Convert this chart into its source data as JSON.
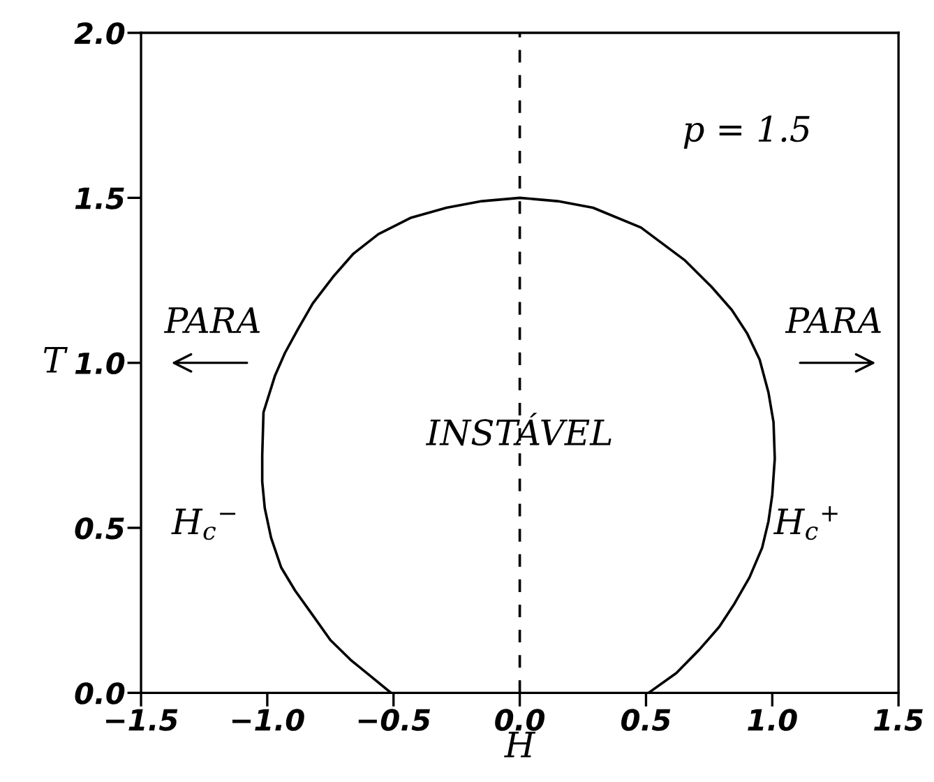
{
  "chart_data": {
    "type": "line",
    "xlabel": "H",
    "ylabel": "T",
    "series": [
      {
        "color": "#000000",
        "line_style": "solid",
        "x": [
          -0.51,
          -0.59,
          -0.67,
          -0.75,
          -0.815,
          -0.89,
          -0.945,
          -0.985,
          -1.01,
          -1.02,
          -1.02,
          -1.015,
          -0.97,
          -0.93,
          -0.88,
          -0.82,
          -0.74,
          -0.66,
          -0.56,
          -0.43,
          -0.29,
          -0.15,
          0.0,
          0.15,
          0.29,
          0.48,
          0.655,
          0.76,
          0.84,
          0.9,
          0.95,
          0.985,
          1.005,
          1.01,
          1.0,
          0.985,
          0.96,
          0.91,
          0.85,
          0.79,
          0.71,
          0.62,
          0.51
        ],
        "values": [
          0.0,
          0.05,
          0.1,
          0.16,
          0.23,
          0.31,
          0.38,
          0.47,
          0.56,
          0.64,
          0.72,
          0.85,
          0.96,
          1.03,
          1.1,
          1.18,
          1.26,
          1.33,
          1.39,
          1.44,
          1.47,
          1.49,
          1.5,
          1.49,
          1.47,
          1.41,
          1.31,
          1.23,
          1.16,
          1.09,
          1.01,
          0.91,
          0.82,
          0.71,
          0.6,
          0.52,
          0.44,
          0.35,
          0.27,
          0.2,
          0.13,
          0.06,
          0.0
        ]
      }
    ],
    "xlim": [
      -1.5,
      1.5
    ],
    "ylim": [
      0.0,
      2.0
    ],
    "xticks": [
      {
        "value": -1.5,
        "label": "−1.5"
      },
      {
        "value": -1.0,
        "label": "−1.0"
      },
      {
        "value": -0.5,
        "label": "−0.5"
      },
      {
        "value": 0.0,
        "label": "0.0"
      },
      0.5,
      {
        "value": 1.0,
        "label": "1.0"
      },
      1.5
    ],
    "yticks": [
      {
        "value": 0.0,
        "label": "0.0"
      },
      0.5,
      {
        "value": 1.0,
        "label": "1.0"
      },
      1.5,
      {
        "value": 2.0,
        "label": "2.0"
      }
    ],
    "ref_lines": [
      {
        "axis": "x",
        "value": 0.0,
        "color": "#000000",
        "line_style": "dashed"
      }
    ],
    "annotations": [
      "p = 1.5",
      "PARA",
      "PARA",
      "INSTÁVEL",
      "H$_{c}$$^{−}$",
      "H$_{c}$$^{+}$"
    ]
  }
}
